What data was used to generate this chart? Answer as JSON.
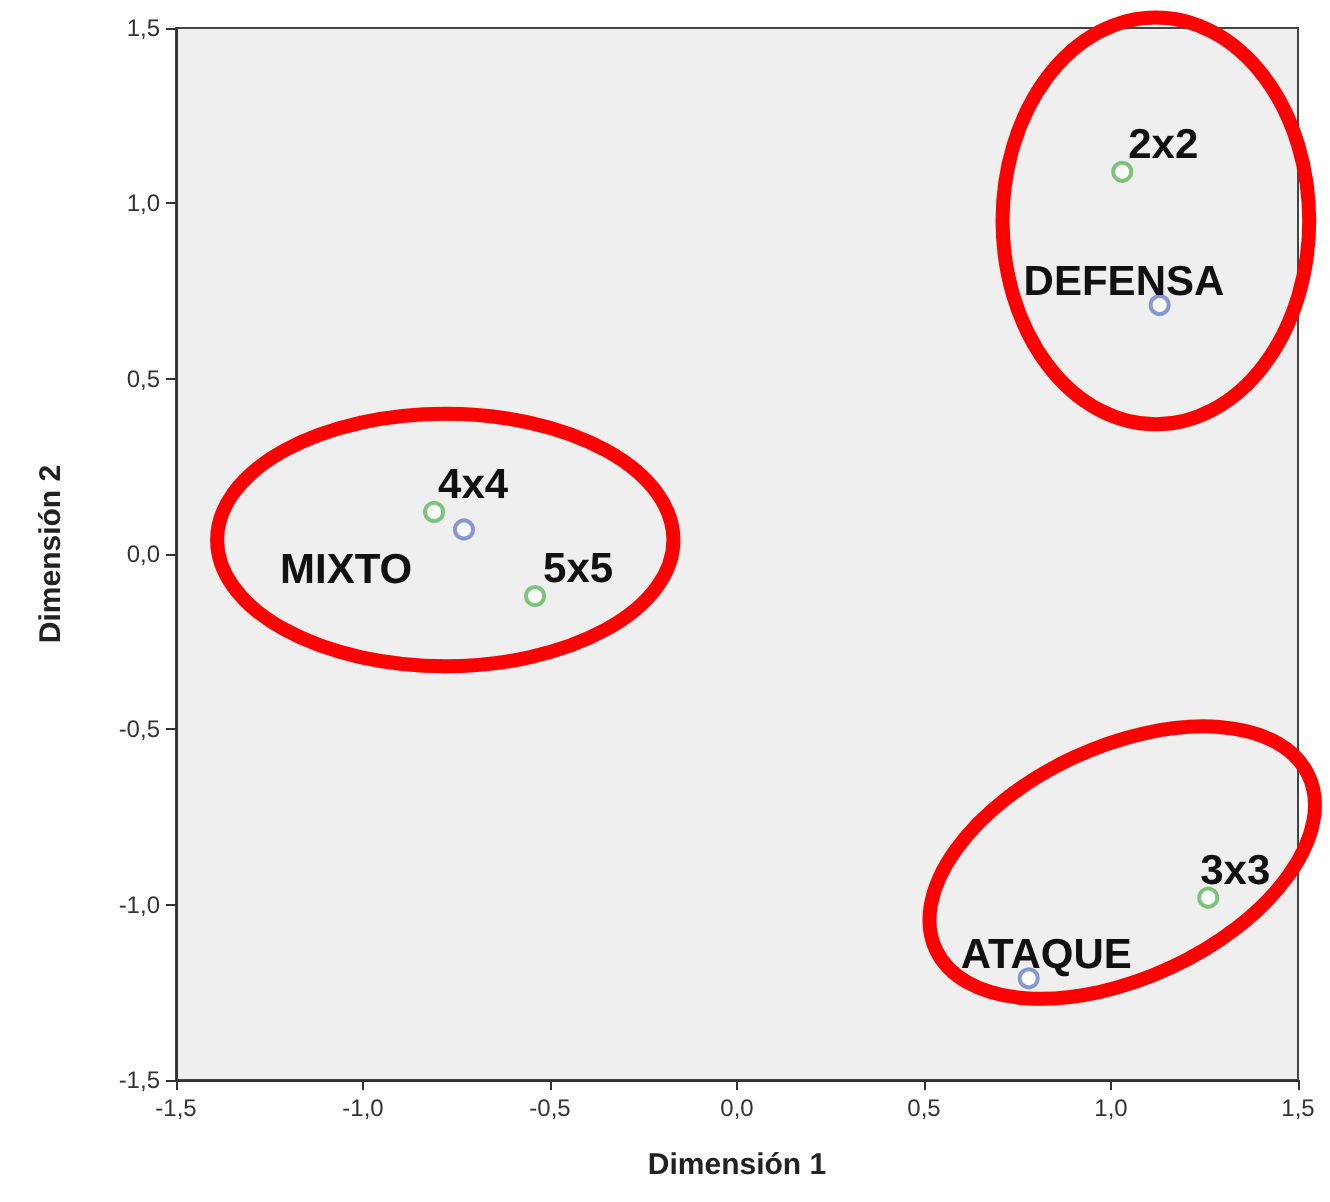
{
  "chart_data": {
    "type": "scatter",
    "xlabel": "Dimensión 1",
    "ylabel": "Dimensión 2",
    "series": [
      {
        "color": "#5cb85c",
        "x": [
          -0.81,
          -0.54,
          1.03,
          1.26
        ],
        "values": [
          0.12,
          -0.12,
          1.09,
          -0.98
        ]
      },
      {
        "color": "#6a7fc8",
        "x": [
          -0.73,
          1.13,
          0.78
        ],
        "values": [
          0.07,
          0.71,
          -1.21
        ]
      }
    ],
    "annotations": [
      {
        "text": "4x4",
        "x": -0.81,
        "y": 0.12
      },
      {
        "text": "5x5",
        "x": -0.54,
        "y": -0.12
      },
      {
        "text": "2x2",
        "x": 1.03,
        "y": 1.09
      },
      {
        "text": "3x3",
        "x": 1.26,
        "y": -0.98
      },
      {
        "text": "MIXTO",
        "x": -0.73,
        "y": 0.07
      },
      {
        "text": "DEFENSA",
        "x": 1.13,
        "y": 0.71
      },
      {
        "text": "ATAQUE",
        "x": 0.78,
        "y": -1.21
      }
    ],
    "xlim": [
      -1.5,
      1.5
    ],
    "ylim": [
      -1.5,
      1.5
    ],
    "xticks": [
      {
        "value": -1.5,
        "label": "-1,5"
      },
      {
        "value": -1,
        "label": "-1,0"
      },
      {
        "value": -0.5,
        "label": "-0,5"
      },
      {
        "value": 0,
        "label": "0,0"
      },
      {
        "value": 0.5,
        "label": "0,5"
      },
      {
        "value": 1,
        "label": "1,0"
      },
      {
        "value": 1.5,
        "label": "1,5"
      }
    ],
    "yticks": [
      {
        "value": -1.5,
        "label": "-1,5"
      },
      {
        "value": -1,
        "label": "-1,0"
      },
      {
        "value": -0.5,
        "label": "-0,5"
      },
      {
        "value": 0,
        "label": "0,0"
      },
      {
        "value": 0.5,
        "label": "0,5"
      },
      {
        "value": 1,
        "label": "1,0"
      },
      {
        "value": 1.5,
        "label": "1,5"
      }
    ],
    "marker": "circle"
  }
}
